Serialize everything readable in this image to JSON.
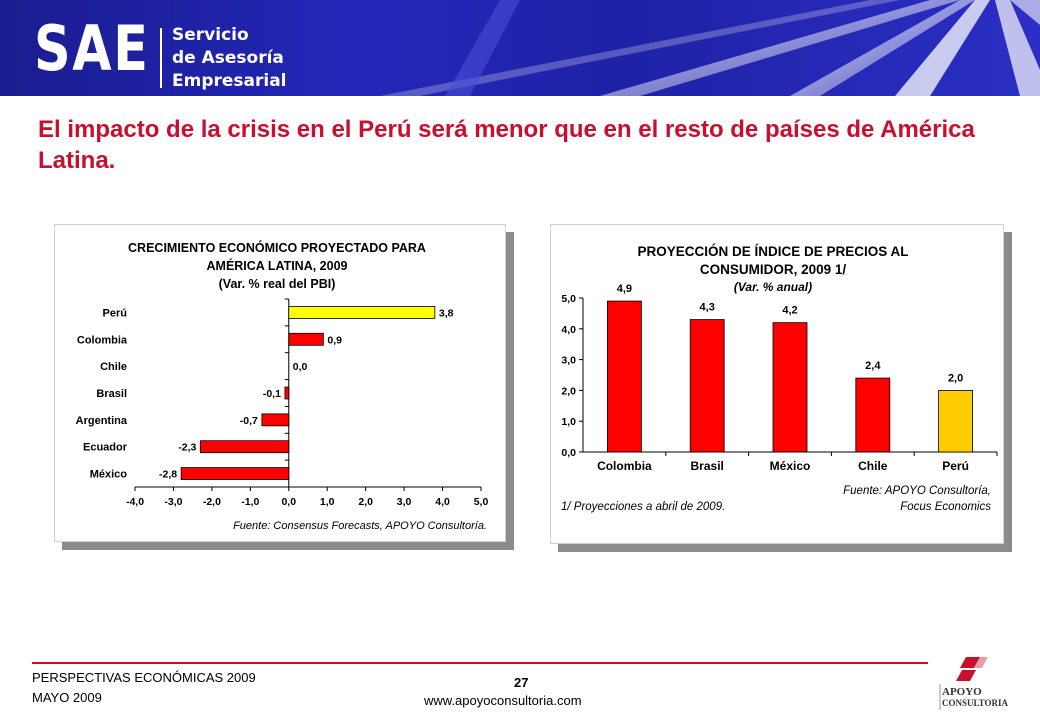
{
  "header": {
    "logo_text": "SAE",
    "subtitle_line1": "Servicio",
    "subtitle_line2": "de Asesoría",
    "subtitle_line3": "Empresarial"
  },
  "title": "El impacto de la crisis en el Perú será menor que en  el resto de países de América Latina.",
  "footer": {
    "left_line1": "PERSPECTIVAS ECONÓMICAS 2009",
    "left_line2": "MAYO 2009",
    "page": "27",
    "url": "www.apoyoconsultoria.com",
    "logo_line1": "APOYO",
    "logo_line2": "CONSULTORIA"
  },
  "colors": {
    "accent": "#c8102e",
    "bar_red": "#ff0000",
    "bar_yellow": "#ffff00",
    "bar_gold": "#ffcc00",
    "banner_blue": "#2327b8"
  },
  "chart_data": [
    {
      "type": "bar",
      "orientation": "horizontal",
      "title": "CRECIMIENTO ECONÓMICO PROYECTADO PARA",
      "title_line2": "AMÉRICA LATINA, 2009",
      "subtitle": "(Var. % real del PBI)",
      "categories": [
        "Perú",
        "Colombia",
        "Chile",
        "Brasil",
        "Argentina",
        "Ecuador",
        "México"
      ],
      "values": [
        3.8,
        0.9,
        0.0,
        -0.1,
        -0.7,
        -2.3,
        -2.8
      ],
      "value_labels": [
        "3,8",
        "0,9",
        "0,0",
        "-0,1",
        "-0,7",
        "-2,3",
        "-2,8"
      ],
      "bar_colors": [
        "#ffff00",
        "#ff0000",
        "#ff0000",
        "#ff0000",
        "#ff0000",
        "#ff0000",
        "#ff0000"
      ],
      "xlim": [
        -4.0,
        5.0
      ],
      "x_ticks": [
        "-4,0",
        "-3,0",
        "-2,0",
        "-1,0",
        "0,0",
        "1,0",
        "2,0",
        "3,0",
        "4,0",
        "5,0"
      ],
      "source": "Fuente: Consensus Forecasts, APOYO Consultoría."
    },
    {
      "type": "bar",
      "orientation": "vertical",
      "title": "PROYECCIÓN DE ÍNDICE DE PRECIOS AL",
      "title_line2": "CONSUMIDOR, 2009 1/",
      "subtitle": "(Var. % anual)",
      "categories": [
        "Colombia",
        "Brasil",
        "México",
        "Chile",
        "Perú"
      ],
      "values": [
        4.9,
        4.3,
        4.2,
        2.4,
        2.0
      ],
      "value_labels": [
        "4,9",
        "4,3",
        "4,2",
        "2,4",
        "2,0"
      ],
      "bar_colors": [
        "#ff0000",
        "#ff0000",
        "#ff0000",
        "#ff0000",
        "#ffcc00"
      ],
      "ylim": [
        0.0,
        5.0
      ],
      "y_ticks": [
        "0,0",
        "1,0",
        "2,0",
        "3,0",
        "4,0",
        "5,0"
      ],
      "note": "1/ Proyecciones a abril de 2009.",
      "source_line1": "Fuente: APOYO Consultoría,",
      "source_line2": "Focus Economics"
    }
  ]
}
